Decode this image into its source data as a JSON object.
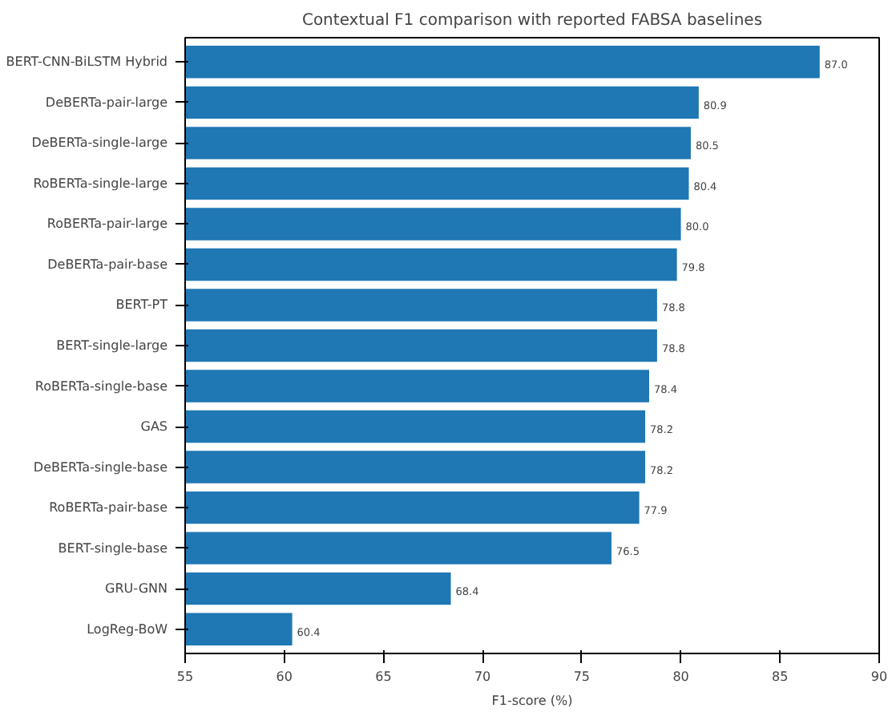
{
  "chart_data": {
    "type": "bar",
    "orientation": "horizontal",
    "title": "Contextual F1 comparison with reported FABSA baselines",
    "xlabel": "F1-score (%)",
    "categories": [
      "BERT-CNN-BiLSTM Hybrid",
      "DeBERTa-pair-large",
      "DeBERTa-single-large",
      "RoBERTa-single-large",
      "RoBERTa-pair-large",
      "DeBERTa-pair-base",
      "BERT-PT",
      "BERT-single-large",
      "RoBERTa-single-base",
      "GAS",
      "DeBERTa-single-base",
      "RoBERTa-pair-base",
      "BERT-single-base",
      "GRU-GNN",
      "LogReg-BoW"
    ],
    "values": [
      87.0,
      80.9,
      80.5,
      80.4,
      80.0,
      79.8,
      78.8,
      78.8,
      78.4,
      78.2,
      78.2,
      77.9,
      76.5,
      68.4,
      60.4
    ],
    "color": "#1f77b4",
    "xlim": [
      55,
      90
    ],
    "xticks": [
      55,
      60,
      65,
      70,
      75,
      80,
      85,
      90
    ],
    "value_labels": [
      "87.0",
      "80.9",
      "80.5",
      "80.4",
      "80.0",
      "79.8",
      "78.8",
      "78.8",
      "78.4",
      "78.2",
      "78.2",
      "77.9",
      "76.5",
      "68.4",
      "60.4"
    ],
    "grid": false
  }
}
